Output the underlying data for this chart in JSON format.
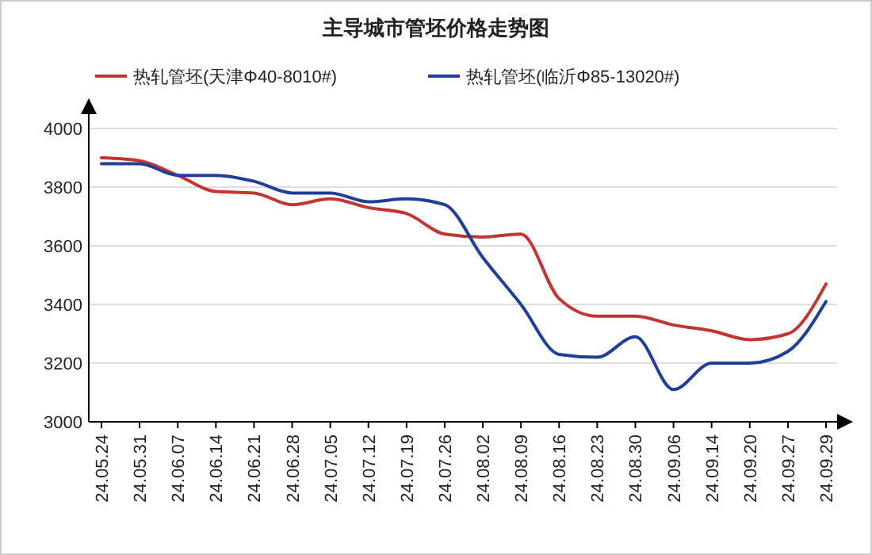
{
  "chart_data": {
    "type": "line",
    "title": "主导城市管坯价格走势图",
    "categories": [
      "24.05.24",
      "24.05.31",
      "24.06.07",
      "24.06.14",
      "24.06.21",
      "24.06.28",
      "24.07.05",
      "24.07.12",
      "24.07.19",
      "24.07.26",
      "24.08.02",
      "24.08.09",
      "24.08.16",
      "24.08.23",
      "24.08.30",
      "24.09.06",
      "24.09.14",
      "24.09.20",
      "24.09.27",
      "24.09.29"
    ],
    "series": [
      {
        "name": "热轧管坯(天津Φ40-8010#)",
        "color": "#c23531",
        "values": [
          3900,
          3890,
          3840,
          3785,
          3780,
          3740,
          3760,
          3730,
          3710,
          3640,
          3630,
          3640,
          3420,
          3360,
          3360,
          3330,
          3310,
          3280,
          3300,
          3470
        ]
      },
      {
        "name": "热轧管坯(临沂Φ85-13020#)",
        "color": "#1f3f99",
        "values": [
          3880,
          3880,
          3840,
          3840,
          3820,
          3780,
          3780,
          3750,
          3760,
          3740,
          3560,
          3400,
          3230,
          3220,
          3290,
          3110,
          3200,
          3200,
          3240,
          3410
        ]
      }
    ],
    "ylim": [
      3000,
      4000
    ],
    "yticks": [
      3000,
      3200,
      3400,
      3600,
      3800,
      4000
    ],
    "grid": "y",
    "legend": "top",
    "marker": "none",
    "line_style": "solid"
  }
}
